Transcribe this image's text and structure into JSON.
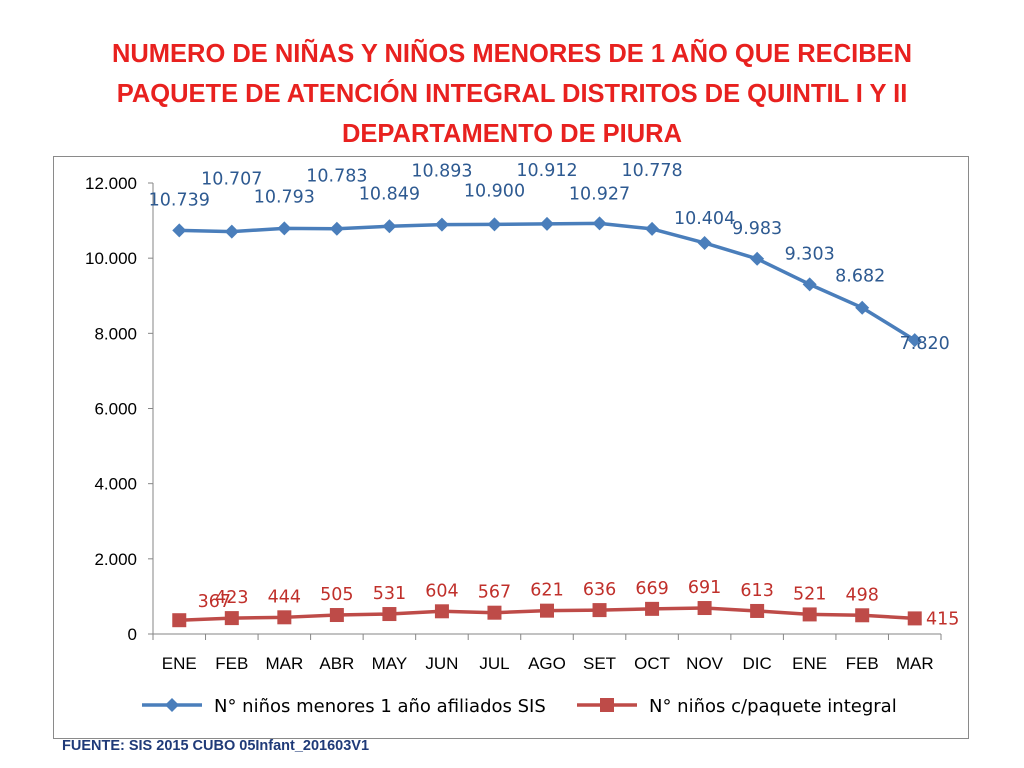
{
  "slide": {
    "title_lines": [
      "NUMERO DE NIÑAS Y NIÑOS MENORES DE 1 AÑO QUE RECIBEN",
      "PAQUETE DE ATENCIÓN INTEGRAL  DISTRITOS DE QUINTIL I Y II",
      "DEPARTAMENTO DE PIURA"
    ],
    "source": "FUENTE: SIS 2015 CUBO 05Infant_201603V1"
  },
  "colors": {
    "title": "#e8211f",
    "series1": "#4a7ebb",
    "series1_label": "#2e5a91",
    "series2": "#be4b48",
    "series2_label": "#c0302b",
    "source": "#1f3a78"
  },
  "chart_data": {
    "type": "line",
    "title": "",
    "xlabel": "",
    "ylabel": "",
    "categories": [
      "ENE",
      "FEB",
      "MAR",
      "ABR",
      "MAY",
      "JUN",
      "JUL",
      "AGO",
      "SET",
      "OCT",
      "NOV",
      "DIC",
      "ENE",
      "FEB",
      "MAR"
    ],
    "ylim": [
      0,
      12000
    ],
    "yticks": [
      0,
      2000,
      4000,
      6000,
      8000,
      10000,
      12000
    ],
    "ytick_labels": [
      "0",
      "2.000",
      "4.000",
      "6.000",
      "8.000",
      "10.000",
      "12.000"
    ],
    "grid": false,
    "legend_position": "bottom",
    "series": [
      {
        "name": "N° niños menores 1 año afiliados SIS",
        "marker": "diamond",
        "values": [
          10739,
          10707,
          10793,
          10783,
          10849,
          10893,
          10900,
          10912,
          10927,
          10778,
          10404,
          9983,
          9303,
          8682,
          7820
        ],
        "labels": [
          "10.739",
          "10.707",
          "10.793",
          "10.783",
          "10.849",
          "10.893",
          "10.900",
          "10.912",
          "10.927",
          "10.778",
          "10.404",
          "9.983",
          "9.303",
          "8.682",
          "7.820"
        ]
      },
      {
        "name": "N° niños c/paquete integral",
        "marker": "square",
        "values": [
          367,
          423,
          444,
          505,
          531,
          604,
          567,
          621,
          636,
          669,
          691,
          613,
          521,
          498,
          415
        ],
        "labels": [
          "367",
          "423",
          "444",
          "505",
          "531",
          "604",
          "567",
          "621",
          "636",
          "669",
          "691",
          "613",
          "521",
          "498",
          "415"
        ]
      }
    ]
  }
}
